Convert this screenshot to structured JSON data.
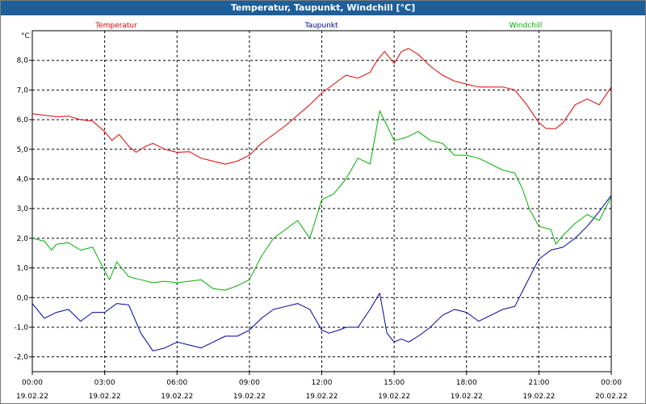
{
  "window": {
    "title": "Temperatur, Taupunkt, Windchill [°C]"
  },
  "colors": {
    "titlebar": "#1f5f99",
    "grid": "#000000"
  },
  "chart_data": {
    "type": "line",
    "title": "Temperatur, Taupunkt, Windchill [°C]",
    "ylabel": "°C",
    "ylim": [
      -2.5,
      9.0
    ],
    "yticks": [
      8.0,
      7.0,
      6.0,
      5.0,
      4.0,
      3.0,
      2.0,
      1.0,
      0.0,
      -1.0,
      -2.0
    ],
    "ytick_labels": [
      "8,0",
      "7,0",
      "6,0",
      "5,0",
      "4,0",
      "3,0",
      "2,0",
      "1,0",
      "0,0",
      "-1,0",
      "-2,0"
    ],
    "xlim": [
      0,
      24
    ],
    "xticks": [
      0,
      3,
      6,
      9,
      12,
      15,
      18,
      21,
      24
    ],
    "xtick_labels": [
      {
        "time": "00:00",
        "date": "19.02.22"
      },
      {
        "time": "03:00",
        "date": "19.02.22"
      },
      {
        "time": "06:00",
        "date": "19.02.22"
      },
      {
        "time": "09:00",
        "date": "19.02.22"
      },
      {
        "time": "12:00",
        "date": "19.02.22"
      },
      {
        "time": "15:00",
        "date": "19.02.22"
      },
      {
        "time": "18:00",
        "date": "19.02.22"
      },
      {
        "time": "21:00",
        "date": "19.02.22"
      },
      {
        "time": "00:00",
        "date": "20.02.22"
      }
    ],
    "grid": true,
    "legend_position": "top",
    "series": [
      {
        "name": "Temperatur",
        "color": "#e00000",
        "points": [
          [
            0,
            6.2
          ],
          [
            0.5,
            6.15
          ],
          [
            1,
            6.1
          ],
          [
            1.5,
            6.12
          ],
          [
            2,
            6.0
          ],
          [
            2.5,
            5.95
          ],
          [
            3,
            5.6
          ],
          [
            3.3,
            5.3
          ],
          [
            3.6,
            5.5
          ],
          [
            4,
            5.1
          ],
          [
            4.3,
            4.9
          ],
          [
            4.7,
            5.1
          ],
          [
            5,
            5.2
          ],
          [
            5.5,
            5.0
          ],
          [
            6,
            4.9
          ],
          [
            6.5,
            4.92
          ],
          [
            7,
            4.7
          ],
          [
            7.5,
            4.6
          ],
          [
            8,
            4.5
          ],
          [
            8.5,
            4.6
          ],
          [
            9,
            4.8
          ],
          [
            9.5,
            5.2
          ],
          [
            10,
            5.5
          ],
          [
            10.5,
            5.8
          ],
          [
            11,
            6.15
          ],
          [
            11.5,
            6.5
          ],
          [
            12,
            6.9
          ],
          [
            12.5,
            7.2
          ],
          [
            13,
            7.5
          ],
          [
            13.5,
            7.4
          ],
          [
            14,
            7.6
          ],
          [
            14.3,
            8.0
          ],
          [
            14.6,
            8.3
          ],
          [
            15,
            7.9
          ],
          [
            15.3,
            8.3
          ],
          [
            15.6,
            8.4
          ],
          [
            16,
            8.2
          ],
          [
            16.5,
            7.8
          ],
          [
            17,
            7.5
          ],
          [
            17.5,
            7.3
          ],
          [
            18,
            7.2
          ],
          [
            18.5,
            7.1
          ],
          [
            19,
            7.1
          ],
          [
            19.5,
            7.1
          ],
          [
            20,
            7.0
          ],
          [
            20.5,
            6.5
          ],
          [
            21,
            5.9
          ],
          [
            21.3,
            5.7
          ],
          [
            21.7,
            5.7
          ],
          [
            22,
            5.9
          ],
          [
            22.5,
            6.5
          ],
          [
            23,
            6.7
          ],
          [
            23.5,
            6.5
          ],
          [
            24,
            7.1
          ]
        ]
      },
      {
        "name": "Taupunkt",
        "color": "#0000a0",
        "points": [
          [
            0,
            -0.2
          ],
          [
            0.5,
            -0.7
          ],
          [
            1,
            -0.5
          ],
          [
            1.5,
            -0.4
          ],
          [
            2,
            -0.8
          ],
          [
            2.5,
            -0.5
          ],
          [
            3,
            -0.5
          ],
          [
            3.5,
            -0.2
          ],
          [
            4,
            -0.25
          ],
          [
            4.5,
            -1.2
          ],
          [
            5,
            -1.8
          ],
          [
            5.5,
            -1.7
          ],
          [
            6,
            -1.5
          ],
          [
            6.5,
            -1.6
          ],
          [
            7,
            -1.7
          ],
          [
            7.5,
            -1.5
          ],
          [
            8,
            -1.3
          ],
          [
            8.5,
            -1.3
          ],
          [
            9,
            -1.1
          ],
          [
            9.5,
            -0.7
          ],
          [
            10,
            -0.4
          ],
          [
            10.5,
            -0.3
          ],
          [
            11,
            -0.2
          ],
          [
            11.5,
            -0.4
          ],
          [
            12,
            -1.1
          ],
          [
            12.3,
            -1.2
          ],
          [
            12.7,
            -1.1
          ],
          [
            13,
            -1.0
          ],
          [
            13.5,
            -1.0
          ],
          [
            14,
            -0.4
          ],
          [
            14.4,
            0.15
          ],
          [
            14.7,
            -1.2
          ],
          [
            15,
            -1.5
          ],
          [
            15.3,
            -1.4
          ],
          [
            15.6,
            -1.5
          ],
          [
            16,
            -1.3
          ],
          [
            16.5,
            -1.0
          ],
          [
            17,
            -0.6
          ],
          [
            17.5,
            -0.4
          ],
          [
            18,
            -0.5
          ],
          [
            18.5,
            -0.8
          ],
          [
            19,
            -0.6
          ],
          [
            19.5,
            -0.4
          ],
          [
            20,
            -0.3
          ],
          [
            20.5,
            0.5
          ],
          [
            21,
            1.3
          ],
          [
            21.5,
            1.6
          ],
          [
            22,
            1.7
          ],
          [
            22.5,
            2.0
          ],
          [
            23,
            2.4
          ],
          [
            23.5,
            2.9
          ],
          [
            24,
            3.45
          ]
        ]
      },
      {
        "name": "Windchill",
        "color": "#00b000",
        "points": [
          [
            0,
            2.0
          ],
          [
            0.5,
            1.9
          ],
          [
            0.8,
            1.6
          ],
          [
            1,
            1.8
          ],
          [
            1.5,
            1.85
          ],
          [
            2,
            1.6
          ],
          [
            2.5,
            1.7
          ],
          [
            3,
            0.9
          ],
          [
            3.2,
            0.6
          ],
          [
            3.5,
            1.2
          ],
          [
            4,
            0.7
          ],
          [
            4.5,
            0.6
          ],
          [
            5,
            0.5
          ],
          [
            5.5,
            0.55
          ],
          [
            6,
            0.5
          ],
          [
            6.5,
            0.55
          ],
          [
            7,
            0.6
          ],
          [
            7.5,
            0.3
          ],
          [
            8,
            0.25
          ],
          [
            8.5,
            0.4
          ],
          [
            9,
            0.6
          ],
          [
            9.5,
            1.4
          ],
          [
            10,
            2.0
          ],
          [
            10.5,
            2.3
          ],
          [
            11,
            2.6
          ],
          [
            11.5,
            2.0
          ],
          [
            12,
            3.3
          ],
          [
            12.5,
            3.5
          ],
          [
            13,
            4.0
          ],
          [
            13.5,
            4.7
          ],
          [
            14,
            4.5
          ],
          [
            14.4,
            6.3
          ],
          [
            14.7,
            5.8
          ],
          [
            15,
            5.3
          ],
          [
            15.5,
            5.4
          ],
          [
            16,
            5.6
          ],
          [
            16.5,
            5.3
          ],
          [
            17,
            5.2
          ],
          [
            17.5,
            4.8
          ],
          [
            18,
            4.8
          ],
          [
            18.5,
            4.7
          ],
          [
            19,
            4.5
          ],
          [
            19.5,
            4.3
          ],
          [
            20,
            4.2
          ],
          [
            20.3,
            3.7
          ],
          [
            20.6,
            3.0
          ],
          [
            21,
            2.4
          ],
          [
            21.5,
            2.3
          ],
          [
            21.7,
            1.8
          ],
          [
            22,
            2.1
          ],
          [
            22.5,
            2.5
          ],
          [
            23,
            2.8
          ],
          [
            23.5,
            2.6
          ],
          [
            24,
            3.4
          ]
        ]
      }
    ]
  }
}
